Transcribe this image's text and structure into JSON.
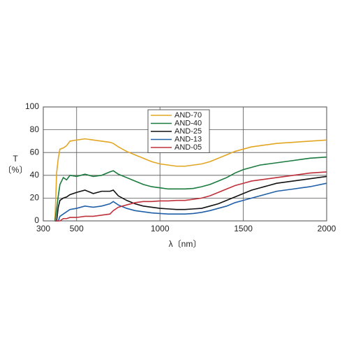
{
  "chart_data": {
    "type": "line",
    "y_label_top": "T",
    "y_label_unit": "〔%〕",
    "x_label": "λ〔nm〕",
    "x": [
      370,
      380,
      390,
      400,
      420,
      440,
      460,
      500,
      550,
      600,
      650,
      700,
      720,
      750,
      800,
      850,
      900,
      950,
      1000,
      1050,
      1100,
      1150,
      1200,
      1250,
      1300,
      1350,
      1400,
      1450,
      1500,
      1550,
      1600,
      1650,
      1700,
      1750,
      1800,
      1850,
      1900,
      2000
    ],
    "series": [
      {
        "name": "AND-70",
        "color": "#e3a623",
        "values": [
          0,
          42,
          55,
          63,
          64,
          66,
          70,
          71,
          72,
          71,
          70,
          69,
          68,
          65,
          61,
          58,
          55,
          52,
          50,
          49,
          48,
          48,
          49,
          50,
          52,
          55,
          58,
          61,
          63,
          65,
          66,
          67,
          68,
          68.5,
          69,
          69.5,
          70,
          71
        ]
      },
      {
        "name": "AND-40",
        "color": "#1b7a3e",
        "values": [
          0,
          10,
          22,
          32,
          38,
          36,
          40,
          39,
          41,
          39,
          40,
          43,
          44,
          41,
          38,
          35,
          32,
          30,
          29,
          28,
          28,
          28,
          28.5,
          30,
          32,
          35,
          38,
          42,
          45,
          47,
          49,
          50,
          51,
          52,
          53,
          54,
          55,
          56
        ]
      },
      {
        "name": "AND-25",
        "color": "#111111",
        "values": [
          0,
          0,
          12,
          18,
          20,
          21,
          23,
          25,
          27,
          24,
          26,
          26,
          27,
          22,
          18,
          15,
          13,
          12,
          11,
          10.5,
          10,
          10,
          10.5,
          11,
          13,
          15,
          18,
          21,
          24,
          27,
          29,
          31,
          33,
          34,
          35,
          36,
          37,
          39
        ]
      },
      {
        "name": "AND-13",
        "color": "#1f5fa8",
        "values": [
          0,
          0,
          0,
          4,
          6,
          8,
          10,
          11,
          13,
          12,
          13,
          15,
          17,
          14,
          11,
          9,
          8,
          7,
          6.5,
          6,
          6,
          6,
          6.5,
          7.5,
          9,
          11,
          13,
          16,
          18,
          20,
          22,
          24,
          26,
          27,
          28,
          29,
          30,
          33
        ]
      },
      {
        "name": "AND-05",
        "color": "#c0303a",
        "values": [
          0,
          0,
          0,
          0,
          2,
          2,
          3,
          3,
          4,
          4,
          5,
          6,
          9,
          12,
          14,
          16,
          17,
          17,
          17.5,
          17.5,
          18,
          18,
          19,
          20,
          22,
          25,
          28,
          31,
          33,
          35,
          36,
          37,
          38,
          39,
          40,
          41,
          42,
          43
        ]
      }
    ],
    "xlim": [
      300,
      2000
    ],
    "xticks": [
      300,
      500,
      1000,
      1500,
      2000
    ],
    "ylim": [
      0,
      100
    ],
    "yticks": [
      0,
      20,
      40,
      60,
      80,
      100
    ],
    "grid": true,
    "legend": "top"
  }
}
